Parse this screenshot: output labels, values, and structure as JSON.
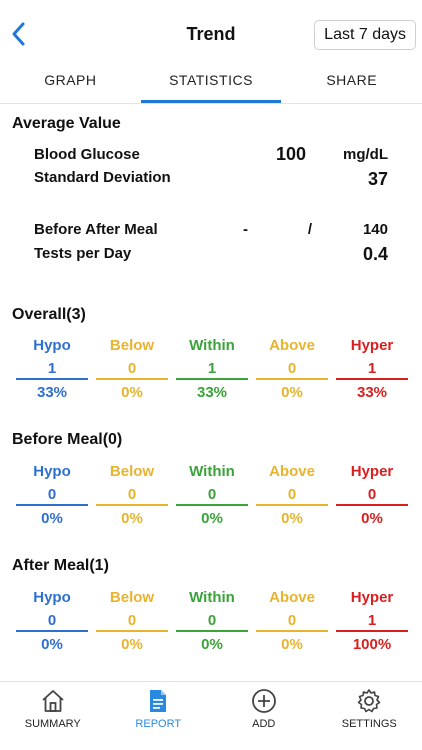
{
  "header": {
    "title": "Trend",
    "range_label": "Last 7 days"
  },
  "tabs": [
    {
      "label": "GRAPH"
    },
    {
      "label": "STATISTICS"
    },
    {
      "label": "SHARE"
    }
  ],
  "average": {
    "title": "Average Value",
    "blood_glucose_label": "Blood Glucose",
    "blood_glucose_value": "100",
    "blood_glucose_unit": "mg/dL",
    "std_dev_label": "Standard Deviation",
    "std_dev_value": "37",
    "before_after_label": "Before After Meal",
    "before_value": "-",
    "separator": "/",
    "after_value": "140",
    "tests_label": "Tests per Day",
    "tests_value": "0.4"
  },
  "colors": {
    "hypo": "#2f6fd0",
    "below": "#e9b32c",
    "within": "#3aa33a",
    "above": "#e9b32c",
    "hyper": "#d92020"
  },
  "categories": [
    "Hypo",
    "Below",
    "Within",
    "Above",
    "Hyper"
  ],
  "sections": [
    {
      "title": "Overall(3)",
      "counts": [
        "1",
        "0",
        "1",
        "0",
        "1"
      ],
      "percents": [
        "33%",
        "0%",
        "33%",
        "0%",
        "33%"
      ]
    },
    {
      "title": "Before Meal(0)",
      "counts": [
        "0",
        "0",
        "0",
        "0",
        "0"
      ],
      "percents": [
        "0%",
        "0%",
        "0%",
        "0%",
        "0%"
      ]
    },
    {
      "title": "After Meal(1)",
      "counts": [
        "0",
        "0",
        "0",
        "0",
        "1"
      ],
      "percents": [
        "0%",
        "0%",
        "0%",
        "0%",
        "100%"
      ]
    }
  ],
  "bottom_nav": [
    {
      "label": "SUMMARY",
      "icon": "home-icon"
    },
    {
      "label": "REPORT",
      "icon": "report-icon"
    },
    {
      "label": "ADD",
      "icon": "add-circle-icon"
    },
    {
      "label": "SETTINGS",
      "icon": "gear-icon"
    }
  ]
}
